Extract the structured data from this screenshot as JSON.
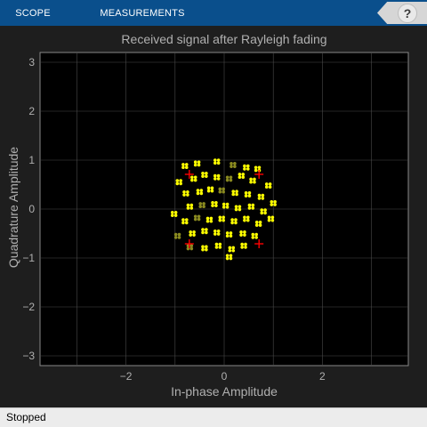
{
  "toolstrip": {
    "tabs": [
      {
        "label": "SCOPE"
      },
      {
        "label": "MEASUREMENTS"
      }
    ],
    "help_icon": "help-icon",
    "help_glyph": "?"
  },
  "colors": {
    "toolstrip": "#0a4f8c",
    "plot_background": "#000000",
    "figure_background": "#1e1e1e",
    "grid": "#4a4a4a",
    "axis_text": "#b0b0b0",
    "points": "#ffff00",
    "reference": "#ff0000"
  },
  "chart_data": {
    "type": "scatter",
    "title": "Received signal after Rayleigh fading",
    "xlabel": "In-phase Amplitude",
    "ylabel": "Quadrature Amplitude",
    "xlim": [
      -3.75,
      3.75
    ],
    "ylim": [
      -3.2,
      3.2
    ],
    "xticks": [
      -2,
      0,
      2
    ],
    "yticks": [
      -3,
      -2,
      -1,
      0,
      1,
      2,
      3
    ],
    "xgrid": [
      -3,
      -2,
      -1,
      0,
      1,
      2,
      3
    ],
    "grid": true,
    "reference_constellation": [
      {
        "x": -0.71,
        "y": 0.71
      },
      {
        "x": 0.71,
        "y": 0.71
      },
      {
        "x": -0.71,
        "y": -0.71
      },
      {
        "x": 0.71,
        "y": -0.71
      }
    ],
    "received_clusters": [
      {
        "x": -0.8,
        "y": 0.88
      },
      {
        "x": -0.55,
        "y": 0.93
      },
      {
        "x": -0.15,
        "y": 0.97
      },
      {
        "x": 0.18,
        "y": 0.9
      },
      {
        "x": 0.45,
        "y": 0.85
      },
      {
        "x": 0.68,
        "y": 0.82
      },
      {
        "x": -0.92,
        "y": 0.55
      },
      {
        "x": -0.62,
        "y": 0.62
      },
      {
        "x": -0.4,
        "y": 0.7
      },
      {
        "x": -0.15,
        "y": 0.65
      },
      {
        "x": 0.1,
        "y": 0.62
      },
      {
        "x": 0.35,
        "y": 0.68
      },
      {
        "x": 0.58,
        "y": 0.58
      },
      {
        "x": 0.9,
        "y": 0.48
      },
      {
        "x": -0.78,
        "y": 0.32
      },
      {
        "x": -0.5,
        "y": 0.35
      },
      {
        "x": -0.28,
        "y": 0.4
      },
      {
        "x": -0.05,
        "y": 0.38
      },
      {
        "x": 0.22,
        "y": 0.33
      },
      {
        "x": 0.48,
        "y": 0.3
      },
      {
        "x": 0.75,
        "y": 0.25
      },
      {
        "x": 1.0,
        "y": 0.12
      },
      {
        "x": -1.02,
        "y": -0.1
      },
      {
        "x": -0.7,
        "y": 0.05
      },
      {
        "x": -0.45,
        "y": 0.08
      },
      {
        "x": -0.2,
        "y": 0.1
      },
      {
        "x": 0.03,
        "y": 0.07
      },
      {
        "x": 0.28,
        "y": 0.02
      },
      {
        "x": 0.55,
        "y": 0.05
      },
      {
        "x": 0.8,
        "y": -0.05
      },
      {
        "x": -0.8,
        "y": -0.25
      },
      {
        "x": -0.55,
        "y": -0.18
      },
      {
        "x": -0.3,
        "y": -0.22
      },
      {
        "x": -0.05,
        "y": -0.2
      },
      {
        "x": 0.2,
        "y": -0.25
      },
      {
        "x": 0.45,
        "y": -0.2
      },
      {
        "x": 0.7,
        "y": -0.3
      },
      {
        "x": 0.95,
        "y": -0.2
      },
      {
        "x": -0.95,
        "y": -0.55
      },
      {
        "x": -0.65,
        "y": -0.5
      },
      {
        "x": -0.4,
        "y": -0.45
      },
      {
        "x": -0.15,
        "y": -0.48
      },
      {
        "x": 0.1,
        "y": -0.52
      },
      {
        "x": 0.38,
        "y": -0.5
      },
      {
        "x": 0.62,
        "y": -0.55
      },
      {
        "x": -0.7,
        "y": -0.78
      },
      {
        "x": -0.4,
        "y": -0.8
      },
      {
        "x": -0.12,
        "y": -0.75
      },
      {
        "x": 0.15,
        "y": -0.82
      },
      {
        "x": 0.4,
        "y": -0.75
      },
      {
        "x": 0.1,
        "y": -0.98
      }
    ]
  },
  "status": {
    "text": "Stopped"
  }
}
